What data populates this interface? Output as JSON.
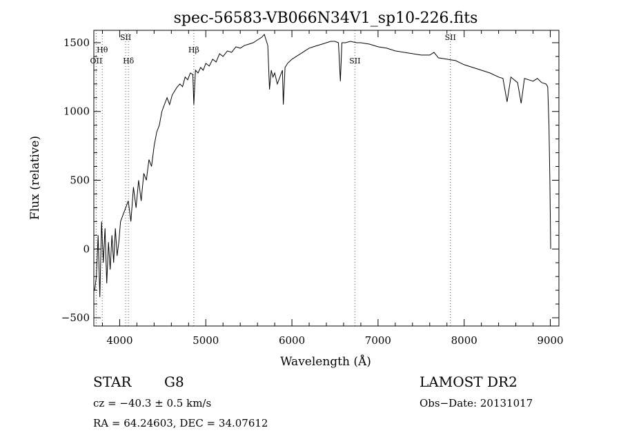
{
  "chart_data": {
    "type": "line",
    "title": "spec-56583-VB066N34V1_sp10-226.fits",
    "xlabel": "Wavelength (Å)",
    "ylabel": "Flux (relative)",
    "xlim": [
      3700,
      9100
    ],
    "ylim": [
      -560,
      1590
    ],
    "xticks": [
      4000,
      5000,
      6000,
      7000,
      8000,
      9000
    ],
    "xtick_labels": [
      "4000",
      "5000",
      "6000",
      "7000",
      "8000",
      "9000"
    ],
    "yticks": [
      -500,
      0,
      500,
      1000,
      1500
    ],
    "ytick_labels": [
      "−500",
      "0",
      "500",
      "1000",
      "1500"
    ],
    "grid": false,
    "legend": "none",
    "line_color": "#000000",
    "line_markers": [
      {
        "label": "OII",
        "x": 3727
      },
      {
        "label": "Hθ",
        "x": 3798
      },
      {
        "label": "SII",
        "x": 4069
      },
      {
        "label": "Hδ",
        "x": 4102
      },
      {
        "label": "Hβ",
        "x": 4861
      },
      {
        "label": "SII",
        "x": 6731
      },
      {
        "label": "SII",
        "x": 7840
      }
    ],
    "series": [
      {
        "x": [
          3710,
          3730,
          3750,
          3770,
          3790,
          3810,
          3830,
          3850,
          3870,
          3890,
          3910,
          3930,
          3950,
          3970,
          3990,
          4010,
          4040,
          4070,
          4100,
          4130,
          4160,
          4190,
          4220,
          4250,
          4280,
          4310,
          4340,
          4370,
          4400,
          4430,
          4460,
          4490,
          4520,
          4550,
          4580,
          4610,
          4640,
          4670,
          4700,
          4730,
          4760,
          4790,
          4820,
          4850,
          4861,
          4880,
          4910,
          4940,
          4970,
          5000,
          5040,
          5080,
          5120,
          5160,
          5200,
          5250,
          5300,
          5350,
          5400,
          5450,
          5500,
          5550,
          5600,
          5650,
          5680,
          5700,
          5720,
          5740,
          5760,
          5780,
          5800,
          5830,
          5860,
          5890,
          5900,
          5920,
          5950,
          6000,
          6050,
          6100,
          6150,
          6200,
          6250,
          6300,
          6350,
          6400,
          6450,
          6500,
          6540,
          6563,
          6580,
          6620,
          6680,
          6750,
          6800,
          6900,
          7000,
          7100,
          7200,
          7300,
          7400,
          7500,
          7600,
          7650,
          7700,
          7800,
          7900,
          8000,
          8100,
          8200,
          8300,
          8400,
          8450,
          8498,
          8542,
          8580,
          8620,
          8662,
          8700,
          8750,
          8800,
          8850,
          8900,
          8950,
          8970,
          8985,
          8995,
          9005
        ],
        "y": [
          -300,
          -200,
          100,
          -350,
          200,
          -100,
          150,
          -250,
          50,
          -150,
          100,
          -100,
          150,
          -50,
          50,
          200,
          250,
          300,
          350,
          200,
          450,
          300,
          500,
          350,
          550,
          500,
          650,
          600,
          750,
          850,
          900,
          1000,
          1050,
          1100,
          1050,
          1120,
          1150,
          1180,
          1200,
          1180,
          1250,
          1230,
          1280,
          1270,
          1050,
          1300,
          1280,
          1320,
          1300,
          1350,
          1330,
          1380,
          1360,
          1420,
          1400,
          1440,
          1430,
          1470,
          1460,
          1480,
          1490,
          1500,
          1520,
          1540,
          1560,
          1520,
          1480,
          1160,
          1300,
          1250,
          1280,
          1200,
          1250,
          1300,
          1050,
          1320,
          1350,
          1380,
          1400,
          1420,
          1440,
          1460,
          1470,
          1480,
          1490,
          1500,
          1510,
          1510,
          1500,
          1220,
          1500,
          1500,
          1510,
          1500,
          1500,
          1490,
          1470,
          1460,
          1440,
          1430,
          1420,
          1410,
          1410,
          1430,
          1390,
          1380,
          1370,
          1340,
          1320,
          1300,
          1280,
          1250,
          1240,
          1070,
          1250,
          1230,
          1210,
          1060,
          1240,
          1230,
          1220,
          1240,
          1210,
          1200,
          1180,
          900,
          500,
          0
        ]
      }
    ]
  },
  "info": {
    "object_class": "STAR",
    "subclass": "G8",
    "survey": "LAMOST DR2",
    "redshift_line": "cz = −40.3 ± 0.5 km/s",
    "obs_date_line": "Obs−Date: 20131017",
    "coords_line": "RA =  64.24603, DEC =  34.07612"
  }
}
